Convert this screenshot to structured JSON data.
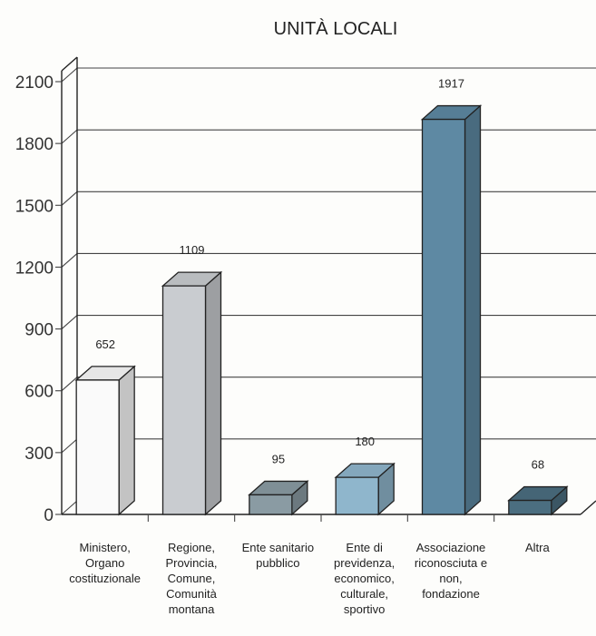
{
  "chart_data": {
    "type": "bar",
    "title": "UNITÀ LOCALI",
    "xlabel": "",
    "ylabel": "",
    "ylim": [
      0,
      2100
    ],
    "yticks": [
      0,
      300,
      600,
      900,
      1200,
      1500,
      1800,
      2100
    ],
    "grid": true,
    "legend": "none",
    "categories": [
      [
        "Ministero,",
        "Organo",
        "costituzionale"
      ],
      [
        "Regione,",
        "Provincia,",
        "Comune,",
        "Comunità",
        "montana"
      ],
      [
        "Ente sanitario",
        "pubblico"
      ],
      [
        "Ente di",
        "previdenza,",
        "economico,",
        "culturale,",
        "sportivo"
      ],
      [
        "Associazione",
        "riconosciuta e",
        "non,",
        "fondazione"
      ],
      [
        "Altra"
      ]
    ],
    "values": [
      652,
      1109,
      95,
      180,
      1917,
      68
    ],
    "colors": [
      "#fafafa",
      "#c9ccd0",
      "#8a9ba3",
      "#8fb6cc",
      "#5e89a3",
      "#4b6e80"
    ]
  }
}
